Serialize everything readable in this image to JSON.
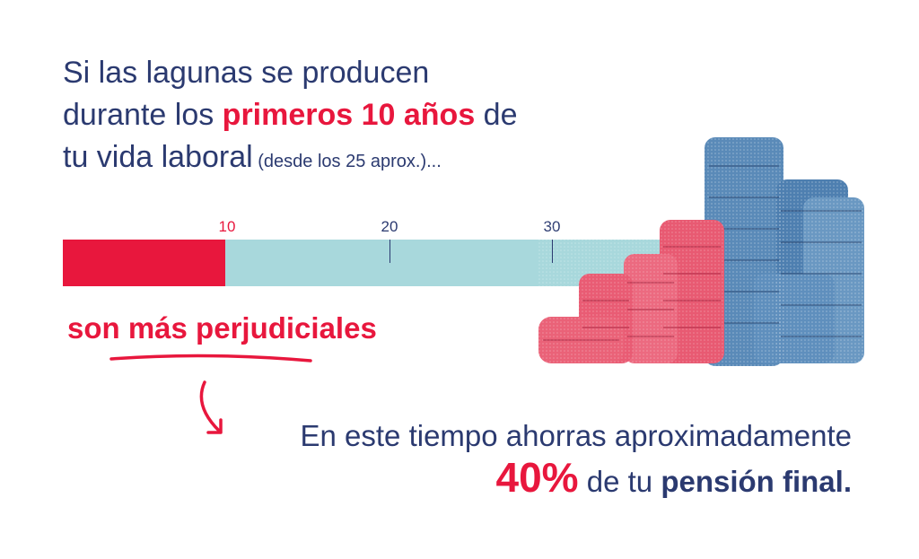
{
  "heading": {
    "line1": "Si las lagunas se producen",
    "line2_pre": "durante los ",
    "line2_highlight": "primeros 10 años",
    "line2_post": " de",
    "line3": "tu vida laboral",
    "line3_small": " (desde los 25 aprox.)..."
  },
  "timeline": {
    "ticks": [
      "10",
      "20",
      "30"
    ],
    "highlight_fraction": 0.27
  },
  "conclusion": "son más perjudiciales",
  "result": {
    "line1": "En este tiempo ahorras aproximadamente",
    "percent": "40%",
    "mid": " de tu ",
    "bold_end": "pensión final."
  },
  "colors": {
    "accent_red": "#e8173d",
    "navy": "#2b3a70",
    "light_teal": "#a8d8dc",
    "coin_blue": "#5a8ab8"
  }
}
